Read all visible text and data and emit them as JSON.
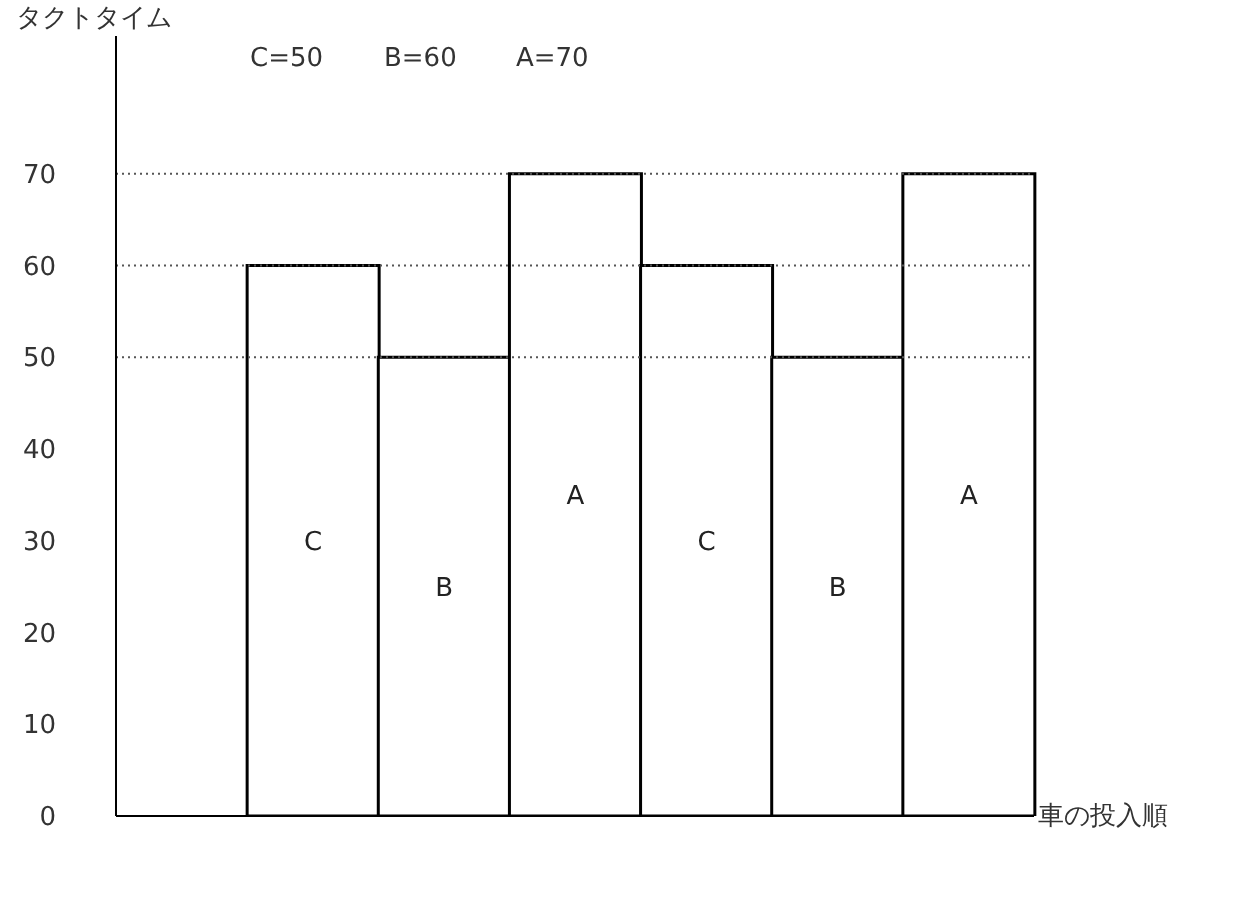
{
  "chart_data": {
    "type": "bar",
    "ylabel": "タクトタイム",
    "xlabel": "車の投入順",
    "annotations": [
      "C=50",
      "B=60",
      "A=70"
    ],
    "categories": [
      null,
      null,
      null,
      null,
      null,
      null,
      null
    ],
    "values": [
      null,
      60,
      50,
      70,
      60,
      50,
      70
    ],
    "value_labels": [
      null,
      "C",
      "B",
      "A",
      "C",
      "B",
      "A"
    ],
    "color": "#ffffff",
    "ylim": [
      0,
      85
    ],
    "yticks": [
      0,
      10,
      20,
      30,
      40,
      50,
      60,
      70
    ],
    "ref_lines": [
      {
        "axis": "y",
        "value": 50,
        "color": "#555555",
        "line_style": "dotted"
      },
      {
        "axis": "y",
        "value": 60,
        "color": "#555555",
        "line_style": "dotted"
      },
      {
        "axis": "y",
        "value": 70,
        "color": "#555555",
        "line_style": "dotted"
      }
    ],
    "grid": false
  }
}
